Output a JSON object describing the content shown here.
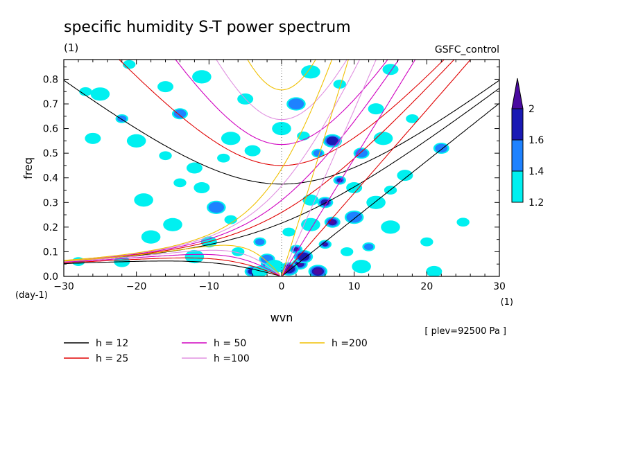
{
  "chart_data": {
    "type": "heatmap",
    "title": "specific humidity S-T power spectrum",
    "subtitle_left": "(1)",
    "subtitle_right": "GSFC_control",
    "xlabel": "wvn",
    "ylabel": "freq",
    "x_unit": "(1)",
    "y_unit": "(day-1)",
    "xlim": [
      -30,
      30
    ],
    "ylim": [
      0,
      0.88
    ],
    "x_ticks": [
      "-30",
      "-20",
      "-10",
      "0",
      "10",
      "20",
      "30"
    ],
    "y_ticks": [
      "0.0",
      "0.1",
      "0.2",
      "0.3",
      "0.4",
      "0.5",
      "0.6",
      "0.7",
      "0.8"
    ],
    "annotation": "[ plev=92500 Pa ]",
    "colorbar": {
      "levels": [
        "1.2",
        "1.4",
        "1.6",
        "2"
      ],
      "colors": [
        "#00f0f0",
        "#1e82ff",
        "#1a1ab4",
        "#4a0aa0"
      ]
    },
    "dispersion_curves": [
      {
        "label": "h = 12",
        "h": 12,
        "color": "#000000"
      },
      {
        "label": "h = 25",
        "h": 25,
        "color": "#e00000"
      },
      {
        "label": "h = 50",
        "h": 50,
        "color": "#d000c0"
      },
      {
        "label": "h =100",
        "h": 100,
        "color": "#e090e0"
      },
      {
        "label": "h =200",
        "h": 200,
        "color": "#f0c000"
      }
    ],
    "power_blobs": [
      {
        "x": 2,
        "y": 0.11,
        "level": 4
      },
      {
        "x": 2.5,
        "y": 0.05,
        "level": 4
      },
      {
        "x": 5,
        "y": 0.02,
        "level": 4
      },
      {
        "x": 6,
        "y": 0.13,
        "level": 4
      },
      {
        "x": 7,
        "y": 0.22,
        "level": 4
      },
      {
        "x": 7,
        "y": 0.55,
        "level": 3
      },
      {
        "x": 8,
        "y": 0.39,
        "level": 3
      },
      {
        "x": 6,
        "y": 0.3,
        "level": 3
      },
      {
        "x": 3,
        "y": 0.08,
        "level": 3
      },
      {
        "x": -2,
        "y": 0.05,
        "level": 3
      },
      {
        "x": -4,
        "y": 0.02,
        "level": 3
      },
      {
        "x": 1,
        "y": 0.03,
        "level": 3
      },
      {
        "x": -22,
        "y": 0.64,
        "level": 2
      },
      {
        "x": -14,
        "y": 0.66,
        "level": 2
      },
      {
        "x": -9,
        "y": 0.28,
        "level": 2
      },
      {
        "x": -3,
        "y": 0.14,
        "level": 2
      },
      {
        "x": -2,
        "y": 0.07,
        "level": 2
      },
      {
        "x": 2,
        "y": 0.7,
        "level": 2
      },
      {
        "x": 5,
        "y": 0.5,
        "level": 2
      },
      {
        "x": 11,
        "y": 0.5,
        "level": 2
      },
      {
        "x": 10,
        "y": 0.24,
        "level": 2
      },
      {
        "x": 12,
        "y": 0.12,
        "level": 2
      },
      {
        "x": 22,
        "y": 0.52,
        "level": 2
      },
      {
        "x": -25,
        "y": 0.74,
        "level": 1
      },
      {
        "x": -27,
        "y": 0.75,
        "level": 1
      },
      {
        "x": -16,
        "y": 0.77,
        "level": 1
      },
      {
        "x": -11,
        "y": 0.81,
        "level": 1
      },
      {
        "x": -21,
        "y": 0.86,
        "level": 1
      },
      {
        "x": -5,
        "y": 0.72,
        "level": 1
      },
      {
        "x": 4,
        "y": 0.83,
        "level": 1
      },
      {
        "x": 8,
        "y": 0.78,
        "level": 1
      },
      {
        "x": 15,
        "y": 0.84,
        "level": 1
      },
      {
        "x": -20,
        "y": 0.55,
        "level": 1
      },
      {
        "x": -16,
        "y": 0.49,
        "level": 1
      },
      {
        "x": -12,
        "y": 0.44,
        "level": 1
      },
      {
        "x": -7,
        "y": 0.56,
        "level": 1
      },
      {
        "x": -8,
        "y": 0.48,
        "level": 1
      },
      {
        "x": -4,
        "y": 0.51,
        "level": 1
      },
      {
        "x": 0,
        "y": 0.6,
        "level": 1
      },
      {
        "x": 3,
        "y": 0.57,
        "level": 1
      },
      {
        "x": -26,
        "y": 0.56,
        "level": 1
      },
      {
        "x": -19,
        "y": 0.31,
        "level": 1
      },
      {
        "x": -14,
        "y": 0.38,
        "level": 1
      },
      {
        "x": -11,
        "y": 0.36,
        "level": 1
      },
      {
        "x": -15,
        "y": 0.21,
        "level": 1
      },
      {
        "x": -7,
        "y": 0.23,
        "level": 1
      },
      {
        "x": -10,
        "y": 0.14,
        "level": 1
      },
      {
        "x": -12,
        "y": 0.08,
        "level": 1
      },
      {
        "x": -6,
        "y": 0.1,
        "level": 1
      },
      {
        "x": -3,
        "y": 0.02,
        "level": 1
      },
      {
        "x": -1,
        "y": 0.04,
        "level": 1
      },
      {
        "x": 1,
        "y": 0.18,
        "level": 1
      },
      {
        "x": 4,
        "y": 0.31,
        "level": 1
      },
      {
        "x": 4,
        "y": 0.21,
        "level": 1
      },
      {
        "x": 9,
        "y": 0.1,
        "level": 1
      },
      {
        "x": 10,
        "y": 0.36,
        "level": 1
      },
      {
        "x": 13,
        "y": 0.3,
        "level": 1
      },
      {
        "x": 15,
        "y": 0.35,
        "level": 1
      },
      {
        "x": 17,
        "y": 0.41,
        "level": 1
      },
      {
        "x": 14,
        "y": 0.56,
        "level": 1
      },
      {
        "x": 18,
        "y": 0.64,
        "level": 1
      },
      {
        "x": 13,
        "y": 0.68,
        "level": 1
      },
      {
        "x": 15,
        "y": 0.2,
        "level": 1
      },
      {
        "x": 20,
        "y": 0.14,
        "level": 1
      },
      {
        "x": 21,
        "y": 0.02,
        "level": 1
      },
      {
        "x": 11,
        "y": 0.04,
        "level": 1
      },
      {
        "x": -28,
        "y": 0.06,
        "level": 1
      },
      {
        "x": -22,
        "y": 0.06,
        "level": 1
      },
      {
        "x": -18,
        "y": 0.16,
        "level": 1
      },
      {
        "x": 25,
        "y": 0.22,
        "level": 1
      }
    ]
  }
}
